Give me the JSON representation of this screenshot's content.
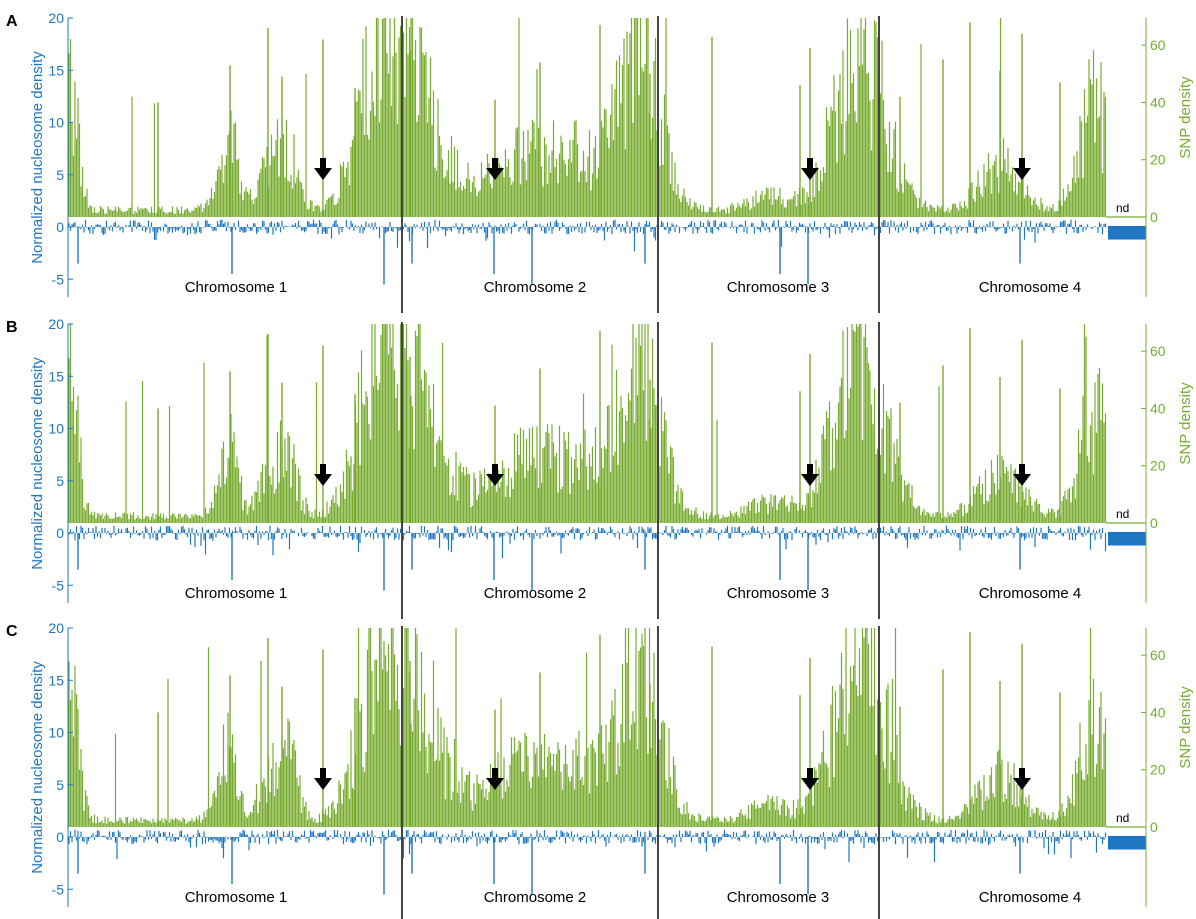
{
  "chart_data": [
    {
      "type": "bar",
      "panel": "A",
      "ylabel_left": "Normalized nucleosome density",
      "ylabel_right": "SNP density",
      "ylim_left": [
        -6.5,
        20
      ],
      "yticks_left": [
        -5,
        0,
        5,
        10,
        15,
        20
      ],
      "ylim_right": [
        -10,
        70
      ],
      "yticks_right": [
        0,
        20,
        40,
        60
      ],
      "categories": [
        "Chromosome 1",
        "Chromosome 2",
        "Chromosome 3",
        "Chromosome 4"
      ],
      "no_data_label": "nd",
      "series": [
        {
          "name": "SNP density",
          "color": "#77ac30",
          "axis": "right",
          "values": [
            12,
            20,
            22,
            22
          ]
        },
        {
          "name": "Normalized nucleosome density",
          "color": "#1f77c4",
          "axis": "left",
          "values": [
            0,
            0,
            0,
            0
          ]
        }
      ],
      "marker": "black-down-arrow"
    },
    {
      "type": "bar",
      "panel": "B",
      "ylabel_left": "Normalized nucleosome density",
      "ylabel_right": "SNP density",
      "ylim_left": [
        -6.5,
        20
      ],
      "yticks_left": [
        -5,
        0,
        5,
        10,
        15,
        20
      ],
      "ylim_right": [
        -10,
        70
      ],
      "yticks_right": [
        0,
        20,
        40,
        60
      ],
      "categories": [
        "Chromosome 1",
        "Chromosome 2",
        "Chromosome 3",
        "Chromosome 4"
      ],
      "no_data_label": "nd",
      "series": [
        {
          "name": "SNP density",
          "color": "#77ac30",
          "axis": "right",
          "values": [
            12,
            20,
            22,
            22
          ]
        },
        {
          "name": "Normalized nucleosome density",
          "color": "#1f77c4",
          "axis": "left",
          "values": [
            0,
            0,
            0,
            0
          ]
        }
      ],
      "marker": "black-down-arrow"
    },
    {
      "type": "bar",
      "panel": "C",
      "ylabel_left": "Normalized nucleosome density",
      "ylabel_right": "SNP density",
      "ylim_left": [
        -6.5,
        20
      ],
      "yticks_left": [
        -5,
        0,
        5,
        10,
        15,
        20
      ],
      "ylim_right": [
        -10,
        70
      ],
      "yticks_right": [
        0,
        20,
        40,
        60
      ],
      "categories": [
        "Chromosome 1",
        "Chromosome 2",
        "Chromosome 3",
        "Chromosome 4"
      ],
      "no_data_label": "nd",
      "series": [
        {
          "name": "SNP density",
          "color": "#77ac30",
          "axis": "right",
          "values": [
            12,
            20,
            22,
            22
          ]
        },
        {
          "name": "Normalized nucleosome density",
          "color": "#1f77c4",
          "axis": "left",
          "values": [
            0,
            0,
            0,
            0
          ]
        }
      ],
      "marker": "black-down-arrow"
    }
  ],
  "colors": {
    "nucleosome": "#1f77c4",
    "snp": "#77ac30",
    "separator": "#444444",
    "arrow": "#000000"
  }
}
